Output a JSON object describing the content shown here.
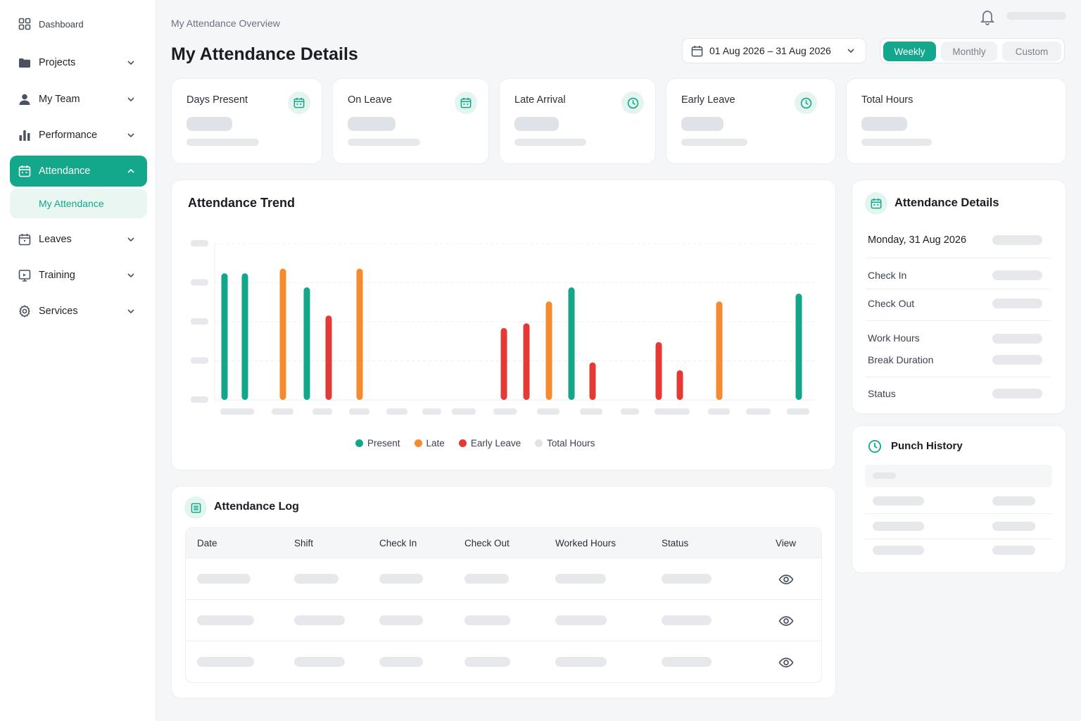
{
  "sidebar": {
    "items": [
      {
        "label": "Dashboard"
      },
      {
        "label": "Projects"
      },
      {
        "label": "My Team"
      },
      {
        "label": "Performance"
      },
      {
        "label": "Attendance"
      },
      {
        "label": "Leaves"
      },
      {
        "label": "Training"
      },
      {
        "label": "Services"
      }
    ],
    "sub_item": "My Attendance"
  },
  "header": {
    "breadcrumb": "My Attendance Overview",
    "title": "My Attendance Details",
    "date_range": "01 Aug 2026 – 31 Aug 2026",
    "segments": [
      "Weekly",
      "Monthly",
      "Custom"
    ],
    "active_segment": "Weekly"
  },
  "stats": [
    {
      "label": "Days Present",
      "icon": "calendar-icon"
    },
    {
      "label": "On Leave",
      "icon": "calendar-icon"
    },
    {
      "label": "Late Arrival",
      "icon": "clock-icon"
    },
    {
      "label": "Early Leave",
      "icon": "clock-icon"
    },
    {
      "label": "Total Hours"
    }
  ],
  "trend": {
    "title": "Attendance Trend",
    "legend": [
      "Present",
      "Late",
      "Early Leave",
      "Total Hours"
    ]
  },
  "chart_data": {
    "type": "bar",
    "title": "Attendance Trend",
    "colors": {
      "Present": "#12a68a",
      "Late": "#f58a2e",
      "Early Leave": "#e53935",
      "Total Hours": "#dfe2e7"
    },
    "bars": [
      {
        "series": "Present",
        "value": 0.81
      },
      {
        "series": "Present",
        "value": 0.81
      },
      {
        "series": "Late",
        "value": 0.84
      },
      {
        "series": "Present",
        "value": 0.72
      },
      {
        "series": "Early Leave",
        "value": 0.54
      },
      {
        "series": "Late",
        "value": 0.84
      },
      {
        "series": "Early Leave",
        "value": 0.46
      },
      {
        "series": "Early Leave",
        "value": 0.49
      },
      {
        "series": "Late",
        "value": 0.63
      },
      {
        "series": "Present",
        "value": 0.72
      },
      {
        "series": "Early Leave",
        "value": 0.24
      },
      {
        "series": "Early Leave",
        "value": 0.37
      },
      {
        "series": "Early Leave",
        "value": 0.19
      },
      {
        "series": "Late",
        "value": 0.63
      },
      {
        "series": "Present",
        "value": 0.68
      }
    ]
  },
  "details": {
    "title": "Attendance Details",
    "date": "Monday, 31 Aug 2026",
    "labels": [
      "Check In",
      "Check Out",
      "Work Hours",
      "Break Duration",
      "Status"
    ]
  },
  "punch": {
    "title": "Punch History"
  },
  "log": {
    "title": "Attendance Log",
    "columns": [
      "Date",
      "Shift",
      "Check In",
      "Check Out",
      "Worked Hours",
      "Status",
      "View"
    ]
  }
}
